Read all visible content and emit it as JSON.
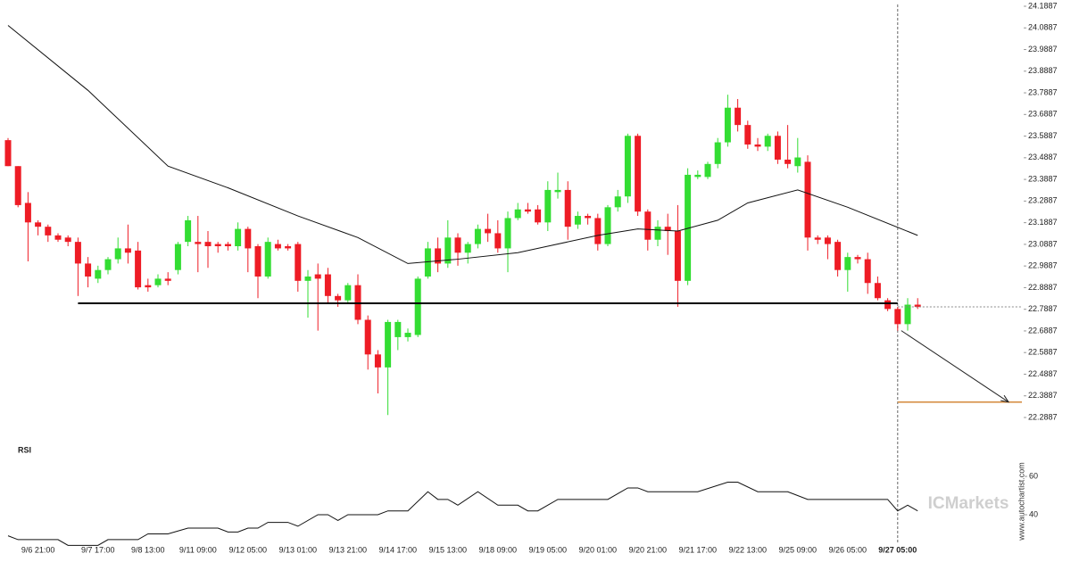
{
  "chart_data": {
    "type": "candlestick",
    "categories": [
      null,
      null,
      null,
      "9/6 21:00",
      null,
      null,
      null,
      null,
      null,
      "9/7 17:00",
      null,
      null,
      null,
      null,
      "9/8 13:00",
      null,
      null,
      null,
      null,
      "9/11 09:00",
      null,
      null,
      null,
      null,
      "9/12 05:00",
      null,
      null,
      null,
      null,
      "9/13 01:00",
      null,
      null,
      null,
      null,
      "9/13 21:00",
      null,
      null,
      null,
      null,
      "9/14 17:00",
      null,
      null,
      null,
      null,
      "9/15 13:00",
      null,
      null,
      null,
      null,
      "9/18 09:00",
      null,
      null,
      null,
      null,
      "9/19 05:00",
      null,
      null,
      null,
      null,
      "9/20 01:00",
      null,
      null,
      null,
      null,
      "9/20 21:00",
      null,
      null,
      null,
      null,
      "9/21 17:00",
      null,
      null,
      null,
      null,
      "9/22 13:00",
      null,
      null,
      null,
      null,
      "9/25 09:00",
      null,
      null,
      null,
      null,
      "9/26 05:00",
      null,
      null,
      null,
      null,
      "9/27 05:00",
      null,
      null
    ],
    "open": [
      23.57,
      23.45,
      23.28,
      23.19,
      23.17,
      23.13,
      23.12,
      23.1,
      23.0,
      22.93,
      22.97,
      23.02,
      23.07,
      23.06,
      22.9,
      22.9,
      22.93,
      22.97,
      23.1,
      23.1,
      23.1,
      23.09,
      23.09,
      23.08,
      23.16,
      23.08,
      22.94,
      23.09,
      23.08,
      23.09,
      22.92,
      22.95,
      22.95,
      22.85,
      22.83,
      22.9,
      22.74,
      22.58,
      22.52,
      22.66,
      22.66,
      22.67,
      22.94,
      23.07,
      23.0,
      23.12,
      23.05,
      23.09,
      23.16,
      23.14,
      23.07,
      23.21,
      23.25,
      23.25,
      23.19,
      23.33,
      23.34,
      23.18,
      23.22,
      23.21,
      23.09,
      23.26,
      23.31,
      23.59,
      23.24,
      23.11,
      23.17,
      23.15,
      22.92,
      23.4,
      23.4,
      23.46,
      23.56,
      23.72,
      23.64,
      23.55,
      23.54,
      23.59,
      23.48,
      23.45,
      23.47,
      23.12,
      23.12,
      23.1,
      22.97,
      23.03,
      23.02,
      22.91,
      22.83,
      22.79,
      22.72,
      22.81
    ],
    "high": [
      23.58,
      23.45,
      23.33,
      23.2,
      23.18,
      23.14,
      23.13,
      23.12,
      23.03,
      22.99,
      23.03,
      23.12,
      23.18,
      23.1,
      22.93,
      22.95,
      22.96,
      23.1,
      23.22,
      23.22,
      23.15,
      23.1,
      23.1,
      23.19,
      23.17,
      23.09,
      23.12,
      23.11,
      23.09,
      23.1,
      22.97,
      23.0,
      22.98,
      22.86,
      22.91,
      22.95,
      22.76,
      22.6,
      22.74,
      22.74,
      22.7,
      22.94,
      23.1,
      23.12,
      23.2,
      23.14,
      23.1,
      23.18,
      23.23,
      23.2,
      23.24,
      23.28,
      23.28,
      23.27,
      23.38,
      23.42,
      23.38,
      23.24,
      23.23,
      23.23,
      23.27,
      23.34,
      23.6,
      23.6,
      23.25,
      23.2,
      23.23,
      23.27,
      23.44,
      23.43,
      23.47,
      23.58,
      23.78,
      23.76,
      23.66,
      23.58,
      23.6,
      23.61,
      23.64,
      23.58,
      23.5,
      23.13,
      23.13,
      23.11,
      23.05,
      23.04,
      23.05,
      22.94,
      22.84,
      22.8,
      22.84,
      22.84
    ],
    "low": [
      23.45,
      23.26,
      23.01,
      23.13,
      23.1,
      23.1,
      23.08,
      22.85,
      22.89,
      22.91,
      22.95,
      23.0,
      23.0,
      22.88,
      22.87,
      22.89,
      22.9,
      22.95,
      23.08,
      22.96,
      22.98,
      23.05,
      23.06,
      23.06,
      22.96,
      22.84,
      22.93,
      23.06,
      23.06,
      22.87,
      22.75,
      22.69,
      22.82,
      22.8,
      22.82,
      22.72,
      22.51,
      22.4,
      22.3,
      22.6,
      22.64,
      22.66,
      22.93,
      22.96,
      22.98,
      22.99,
      23.0,
      23.07,
      23.1,
      23.05,
      22.96,
      23.2,
      23.23,
      23.18,
      23.15,
      23.3,
      23.11,
      23.16,
      23.18,
      23.06,
      23.08,
      23.24,
      23.28,
      23.22,
      23.06,
      23.08,
      23.04,
      22.8,
      22.9,
      23.39,
      23.39,
      23.44,
      23.54,
      23.61,
      23.53,
      23.52,
      23.52,
      23.46,
      23.44,
      23.42,
      23.06,
      23.09,
      23.02,
      22.94,
      22.87,
      23.0,
      22.86,
      22.83,
      22.78,
      22.69,
      22.69,
      22.79
    ],
    "close": [
      23.45,
      23.27,
      23.19,
      23.17,
      23.13,
      23.11,
      23.1,
      23.0,
      22.94,
      22.97,
      23.02,
      23.07,
      23.05,
      22.89,
      22.89,
      22.93,
      22.92,
      23.09,
      23.2,
      23.09,
      23.08,
      23.08,
      23.08,
      23.16,
      23.07,
      22.94,
      23.1,
      23.07,
      23.07,
      22.92,
      22.94,
      22.93,
      22.85,
      22.83,
      22.9,
      22.74,
      22.58,
      22.52,
      22.73,
      22.73,
      22.68,
      22.93,
      23.07,
      23.0,
      23.12,
      23.05,
      23.09,
      23.16,
      23.14,
      23.07,
      23.21,
      23.25,
      23.24,
      23.19,
      23.34,
      23.34,
      23.17,
      23.22,
      23.21,
      23.09,
      23.26,
      23.31,
      23.59,
      23.24,
      23.11,
      23.17,
      23.15,
      22.92,
      23.41,
      23.41,
      23.46,
      23.56,
      23.72,
      23.64,
      23.55,
      23.54,
      23.59,
      23.48,
      23.46,
      23.49,
      23.12,
      23.11,
      23.09,
      22.97,
      23.03,
      23.02,
      22.91,
      22.84,
      22.79,
      22.72,
      22.81,
      22.8
    ],
    "up_color": "#33dd33",
    "down_color": "#ee1c25",
    "ylim": [
      22.2887,
      24.1887
    ],
    "yticks": [
      22.2887,
      22.3887,
      22.4887,
      22.5887,
      22.6887,
      22.7887,
      22.8887,
      22.9887,
      23.0887,
      23.1887,
      23.2887,
      23.3887,
      23.4887,
      23.5887,
      23.6887,
      23.7887,
      23.8887,
      23.9887,
      24.0887,
      24.1887
    ],
    "moving_average": {
      "color": "#111111",
      "x": [
        0,
        8,
        16,
        22,
        29,
        35,
        40,
        45,
        51,
        54,
        59,
        63,
        67,
        71,
        74,
        79,
        84,
        91
      ],
      "values": [
        24.1,
        23.8,
        23.45,
        23.35,
        23.22,
        23.12,
        23.0,
        23.02,
        23.05,
        23.08,
        23.13,
        23.16,
        23.15,
        23.2,
        23.28,
        23.34,
        23.26,
        23.13
      ]
    },
    "support_level": 22.816,
    "target_level": 22.36,
    "rsi": {
      "title": "RSI",
      "color": "#111111",
      "ylim": [
        23,
        74
      ],
      "yticks": [
        40,
        60
      ],
      "x": [
        0,
        1,
        5,
        6,
        9,
        10,
        13,
        14,
        16,
        18,
        21,
        22,
        23,
        24,
        25,
        26,
        28,
        29,
        31,
        32,
        33,
        34,
        37,
        38,
        40,
        42,
        43,
        44,
        45,
        47,
        49,
        51,
        52,
        53,
        55,
        60,
        62,
        63,
        64,
        69,
        72,
        73,
        75,
        78,
        80,
        88,
        89,
        90,
        91
      ],
      "values": [
        29,
        27,
        27,
        24,
        24,
        27,
        27,
        30,
        30,
        33,
        33,
        31,
        31,
        33,
        33,
        36,
        36,
        34,
        40,
        40,
        37,
        40,
        40,
        42,
        42,
        52,
        48,
        48,
        45,
        52,
        45,
        45,
        42,
        42,
        48,
        48,
        54,
        54,
        52,
        52,
        57,
        57,
        52,
        52,
        48,
        48,
        42,
        45,
        42
      ]
    },
    "watermark": "ICMarkets",
    "source": "www.autochartist.com"
  }
}
